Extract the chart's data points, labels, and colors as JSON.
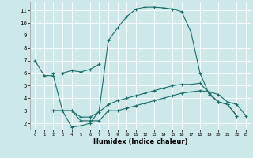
{
  "xlabel": "Humidex (Indice chaleur)",
  "xlim": [
    -0.5,
    23.5
  ],
  "ylim": [
    1.5,
    11.7
  ],
  "yticks": [
    2,
    3,
    4,
    5,
    6,
    7,
    8,
    9,
    10,
    11
  ],
  "xticks": [
    0,
    1,
    2,
    3,
    4,
    5,
    6,
    7,
    8,
    9,
    10,
    11,
    12,
    13,
    14,
    15,
    16,
    17,
    18,
    19,
    20,
    21,
    22,
    23
  ],
  "bg_color": "#cde8e8",
  "grid_color": "#ffffff",
  "line_color": "#1a6e6a",
  "line1_x": [
    0,
    1,
    2,
    3,
    4,
    5,
    6,
    7,
    8,
    9,
    10,
    11,
    12,
    13,
    14,
    15,
    16,
    17,
    18,
    19,
    20,
    21,
    22
  ],
  "line1_y": [
    7.0,
    5.8,
    5.8,
    3.0,
    1.7,
    1.8,
    2.0,
    3.0,
    8.6,
    9.6,
    10.5,
    11.1,
    11.25,
    11.25,
    11.2,
    11.1,
    10.9,
    9.3,
    6.0,
    4.3,
    3.7,
    3.5,
    2.6
  ],
  "line2_x": [
    2,
    3,
    4,
    5,
    6,
    7,
    8,
    9,
    10,
    11,
    12,
    13,
    14,
    15,
    16,
    17,
    18,
    19,
    20,
    21,
    22,
    23
  ],
  "line2_y": [
    3.0,
    3.0,
    3.0,
    2.2,
    2.2,
    2.2,
    3.0,
    3.0,
    3.2,
    3.4,
    3.6,
    3.8,
    4.0,
    4.2,
    4.4,
    4.5,
    4.6,
    4.5,
    4.3,
    3.7,
    3.5,
    2.6
  ],
  "line3_x": [
    2,
    3,
    4,
    5,
    6,
    7,
    8,
    9,
    10,
    11,
    12,
    13,
    14,
    15,
    16,
    17,
    18,
    19,
    20,
    21,
    22
  ],
  "line3_y": [
    3.0,
    3.0,
    3.0,
    2.5,
    2.5,
    2.9,
    3.5,
    3.8,
    4.0,
    4.2,
    4.4,
    4.6,
    4.8,
    5.0,
    5.1,
    5.1,
    5.2,
    4.4,
    3.7,
    3.5,
    2.6
  ],
  "line4_x": [
    2,
    3,
    4,
    5,
    6,
    7
  ],
  "line4_y": [
    6.0,
    6.0,
    6.2,
    6.1,
    6.3,
    6.7
  ]
}
